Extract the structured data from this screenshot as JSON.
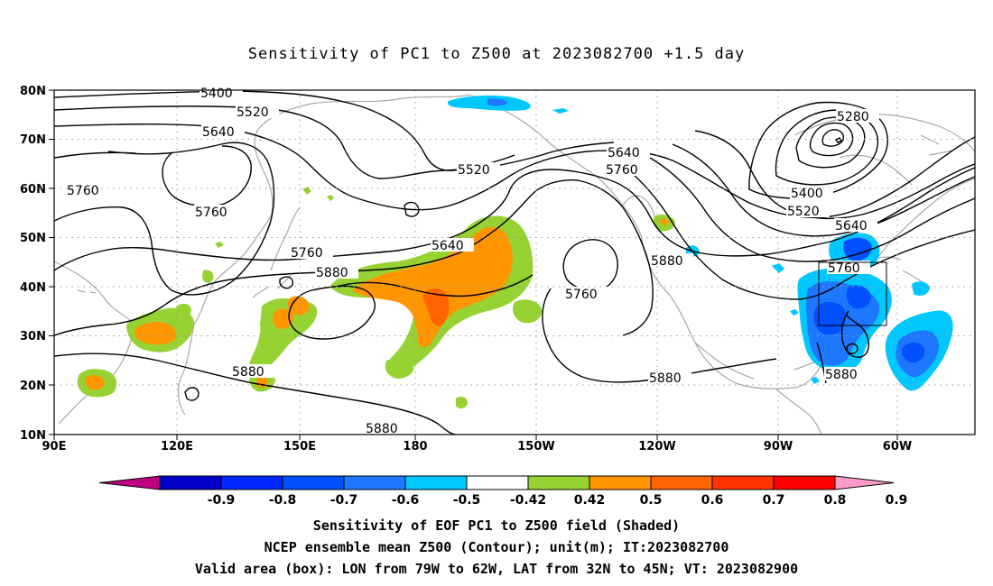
{
  "title": "Sensitivity of PC1 to Z500 at 2023082700 +1.5 day",
  "lat_labels": [
    "80N",
    "70N",
    "60N",
    "50N",
    "40N",
    "30N",
    "20N",
    "10N"
  ],
  "lon_labels": [
    "90E",
    "120E",
    "150E",
    "180",
    "150W",
    "120W",
    "90W",
    "60W"
  ],
  "contour_labels": [
    "5400",
    "5520",
    "5640",
    "5760",
    "5760",
    "5520",
    "5640",
    "5880",
    "5760",
    "5640",
    "5760",
    "5280",
    "5400",
    "5520",
    "5640",
    "5760",
    "5880",
    "5760",
    "5880",
    "5880",
    "5880",
    "5880"
  ],
  "colorbar": {
    "labels": [
      "-0.9",
      "-0.8",
      "-0.7",
      "-0.6",
      "-0.5",
      "-0.42",
      "0.42",
      "0.5",
      "0.6",
      "0.7",
      "0.8",
      "0.9"
    ],
    "colors": [
      "#c00080",
      "#0000c8",
      "#0028ff",
      "#0050ff",
      "#1e78ff",
      "#00c8ff",
      "#ffffff",
      "#96d232",
      "#ff9600",
      "#ff6400",
      "#ff3200",
      "#ff0000",
      "#ff9bc8"
    ]
  },
  "captions": [
    "Sensitivity of EOF PC1 to Z500 field (Shaded)",
    "NCEP ensemble mean Z500 (Contour); unit(m); IT:2023082700",
    "Valid area (box): LON from 79W to 62W, LAT from 32N to 45N; VT: 2023082900"
  ]
}
